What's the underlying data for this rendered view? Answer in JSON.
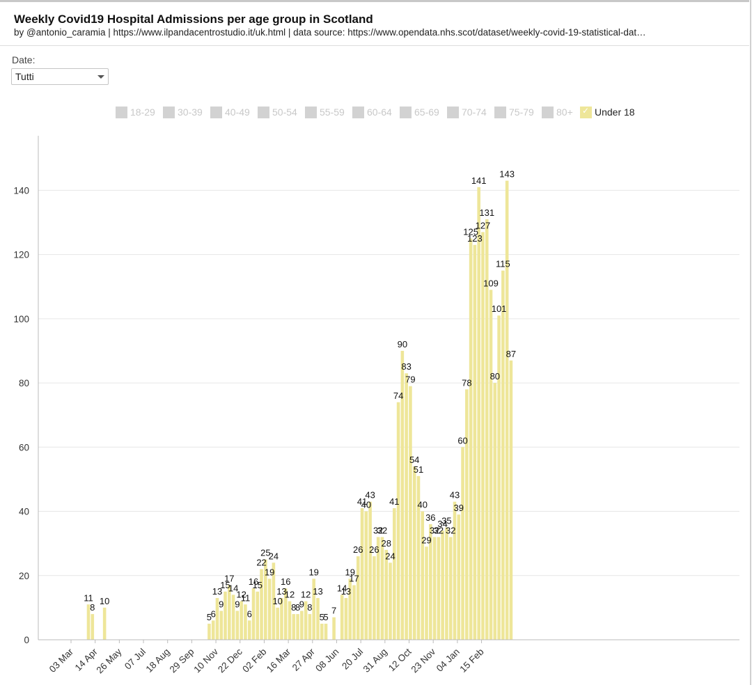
{
  "header": {
    "title": "Weekly Covid19 Hospital Admissions per age group in Scotland",
    "subtitle": "by @antonio_caramia | https://www.ilpandacentrostudio.it/uk.html | data source: https://www.opendata.nhs.scot/dataset/weekly-covid-19-statistical-dat…"
  },
  "filter": {
    "label": "Date:",
    "selected": "Tutti"
  },
  "legend": {
    "items": [
      {
        "label": "18-29",
        "active": false
      },
      {
        "label": "30-39",
        "active": false
      },
      {
        "label": "40-49",
        "active": false
      },
      {
        "label": "50-54",
        "active": false
      },
      {
        "label": "55-59",
        "active": false
      },
      {
        "label": "60-64",
        "active": false
      },
      {
        "label": "65-69",
        "active": false
      },
      {
        "label": "70-74",
        "active": false
      },
      {
        "label": "75-79",
        "active": false
      },
      {
        "label": "80+",
        "active": false
      },
      {
        "label": "Under 18",
        "active": true
      }
    ]
  },
  "colors": {
    "bar": "#eee699",
    "grid": "#e6e6e6",
    "axis": "#bbbbbb",
    "legend_inactive": "#d2d2d2"
  },
  "chart_data": {
    "type": "bar",
    "title": "Weekly Covid19 Hospital Admissions per age group in Scotland",
    "series_name": "Under 18",
    "xlabel": "",
    "ylabel": "",
    "ylim": [
      0,
      157
    ],
    "yticks": [
      0,
      20,
      40,
      60,
      80,
      100,
      120,
      140
    ],
    "xtick_labels": [
      "03 Mar",
      "14 Apr",
      "26 May",
      "07 Jul",
      "18 Aug",
      "29 Sep",
      "10 Nov",
      "22 Dec",
      "02 Feb",
      "16 Mar",
      "27 Apr",
      "08 Jun",
      "20 Jul",
      "31 Aug",
      "12 Oct",
      "23 Nov",
      "04 Jan",
      "15 Feb"
    ],
    "values": [
      null,
      null,
      null,
      null,
      null,
      null,
      null,
      null,
      null,
      11,
      8,
      null,
      null,
      10,
      null,
      null,
      null,
      null,
      null,
      null,
      null,
      null,
      null,
      null,
      null,
      null,
      null,
      null,
      null,
      null,
      null,
      null,
      null,
      null,
      null,
      null,
      null,
      null,
      null,
      5,
      6,
      13,
      9,
      15,
      17,
      14,
      9,
      12,
      11,
      6,
      16,
      15,
      22,
      25,
      19,
      24,
      10,
      13,
      16,
      12,
      8,
      8,
      9,
      12,
      8,
      19,
      13,
      5,
      5,
      null,
      7,
      null,
      14,
      13,
      19,
      17,
      26,
      41,
      40,
      43,
      26,
      32,
      32,
      28,
      24,
      41,
      74,
      90,
      83,
      79,
      54,
      51,
      40,
      29,
      36,
      32,
      32,
      34,
      35,
      32,
      43,
      39,
      60,
      78,
      125,
      123,
      141,
      127,
      131,
      109,
      80,
      101,
      115,
      143,
      87
    ]
  }
}
